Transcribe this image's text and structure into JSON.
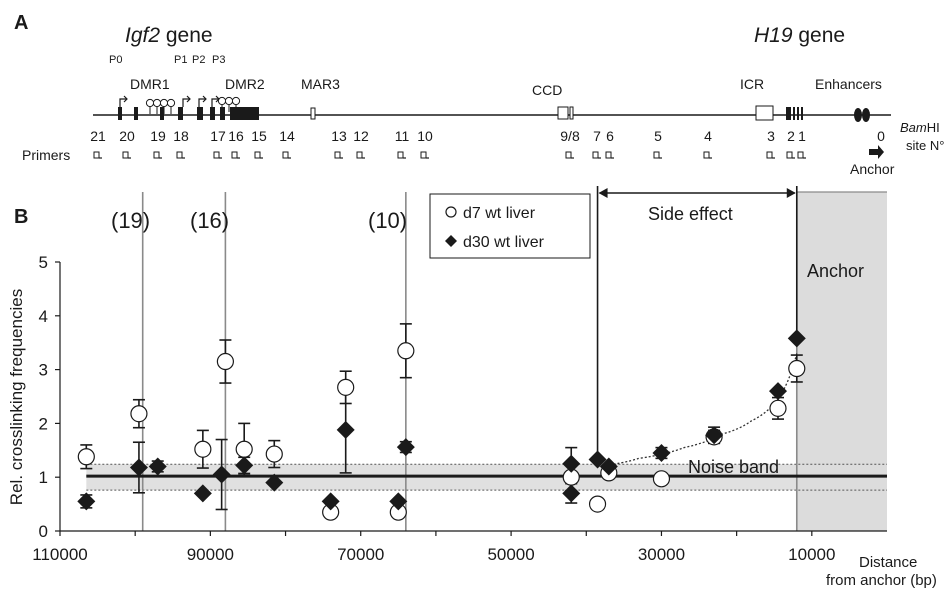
{
  "panel_a": {
    "label": "A",
    "igf2_gene_name": "Igf2",
    "igf2_gene_suffix": " gene",
    "h19_gene_name": "H19",
    "h19_gene_suffix": " gene",
    "promoters": [
      "P0",
      "P1",
      "P2",
      "P3"
    ],
    "regions": [
      "DMR1",
      "DMR2",
      "MAR3",
      "CCD",
      "ICR",
      "Enhancers"
    ],
    "primers_label": "Primers",
    "primer_numbers": [
      "21",
      "20",
      "19",
      "18",
      "17",
      "16",
      "15",
      "14",
      "13",
      "12",
      "11",
      "10",
      "9/8",
      "7",
      "6",
      "5",
      "4",
      "3",
      "2",
      "1",
      "0"
    ],
    "bamhi_label_italic": "Bam",
    "bamhi_label_rest": "HI",
    "site_label": "site N°",
    "anchor_label": "Anchor"
  },
  "panel_b": {
    "label": "B",
    "vline_labels": [
      "(19)",
      "(16)",
      "(10)"
    ],
    "side_effect_label": "Side effect",
    "anchor_region_label": "Anchor",
    "noise_band_label": "Noise band",
    "distance_label_line1": "Distance",
    "distance_label_line2": "from anchor (bp)"
  },
  "chart_data": {
    "type": "scatter",
    "title": "",
    "xlabel": "Distance from anchor (bp)",
    "ylabel": "Rel. crosslinking frequencies",
    "xlim": [
      110000,
      0
    ],
    "ylim": [
      0,
      5
    ],
    "x_reversed": true,
    "xticks": [
      110000,
      90000,
      70000,
      50000,
      30000,
      10000
    ],
    "xtick_labels": [
      "110000",
      "90000",
      "70000",
      "50000",
      "30000",
      "10000"
    ],
    "yticks": [
      0,
      1,
      2,
      3,
      4,
      5
    ],
    "ytick_labels": [
      "0",
      "1",
      "2",
      "3",
      "4",
      "5"
    ],
    "legend_position": "top-center",
    "vlines": [
      {
        "x": 99000,
        "label": "(19)"
      },
      {
        "x": 88000,
        "label": "(16)"
      },
      {
        "x": 64000,
        "label": "(10)"
      }
    ],
    "noise_band": {
      "mean": 1.02,
      "low": 0.76,
      "high": 1.24
    },
    "anchor_region": [
      12000,
      0
    ],
    "side_effect_region": [
      38500,
      12000
    ],
    "series": [
      {
        "name": "d7 wt liver",
        "marker": "open-circle",
        "points": [
          {
            "x": 106500,
            "y": 1.38,
            "err": 0.22
          },
          {
            "x": 99500,
            "y": 2.18,
            "err": 0.26
          },
          {
            "x": 91000,
            "y": 1.52,
            "err": 0.35
          },
          {
            "x": 88000,
            "y": 3.15,
            "err": 0.4
          },
          {
            "x": 85500,
            "y": 1.52,
            "err": 0.48
          },
          {
            "x": 81500,
            "y": 1.43,
            "err": 0.25
          },
          {
            "x": 74000,
            "y": 0.35,
            "err": 0
          },
          {
            "x": 72000,
            "y": 2.67,
            "err": 0.3
          },
          {
            "x": 65000,
            "y": 0.35,
            "err": 0
          },
          {
            "x": 64000,
            "y": 3.35,
            "err": 0.5
          },
          {
            "x": 42000,
            "y": 1.0,
            "err": 0.25
          },
          {
            "x": 38500,
            "y": 0.5,
            "err": 0
          },
          {
            "x": 37000,
            "y": 1.08,
            "err": 0
          },
          {
            "x": 30000,
            "y": 0.97,
            "err": 0
          },
          {
            "x": 23000,
            "y": 1.75,
            "err": 0.12
          },
          {
            "x": 14500,
            "y": 2.28,
            "err": 0.2
          },
          {
            "x": 12000,
            "y": 3.02,
            "err": 0.25
          }
        ]
      },
      {
        "name": "d30 wt liver",
        "marker": "filled-diamond",
        "points": [
          {
            "x": 106500,
            "y": 0.55,
            "err": 0.12
          },
          {
            "x": 99500,
            "y": 1.18,
            "err": 0.47
          },
          {
            "x": 97000,
            "y": 1.2,
            "err": 0.1
          },
          {
            "x": 91000,
            "y": 0.7,
            "err": 0
          },
          {
            "x": 88500,
            "y": 1.05,
            "err": 0.65
          },
          {
            "x": 85500,
            "y": 1.22,
            "err": 0.15
          },
          {
            "x": 81500,
            "y": 0.9,
            "err": 0
          },
          {
            "x": 74000,
            "y": 0.55,
            "err": 0
          },
          {
            "x": 72000,
            "y": 1.88,
            "err": 0.8
          },
          {
            "x": 65000,
            "y": 0.55,
            "err": 0
          },
          {
            "x": 64000,
            "y": 1.56,
            "err": 0.1
          },
          {
            "x": 42000,
            "y": 1.25,
            "err": 0.3
          },
          {
            "x": 42000,
            "y": 0.7,
            "err": 0.18
          },
          {
            "x": 38500,
            "y": 1.33,
            "err": 0
          },
          {
            "x": 37000,
            "y": 1.2,
            "err": 0
          },
          {
            "x": 30000,
            "y": 1.45,
            "err": 0.1
          },
          {
            "x": 23000,
            "y": 1.78,
            "err": 0.15
          },
          {
            "x": 14500,
            "y": 2.6,
            "err": 0
          },
          {
            "x": 12000,
            "y": 3.58,
            "err": 0
          }
        ]
      }
    ],
    "fit_curve": [
      {
        "x": 38500,
        "y": 1.2
      },
      {
        "x": 33000,
        "y": 1.35
      },
      {
        "x": 27000,
        "y": 1.55
      },
      {
        "x": 22000,
        "y": 1.8
      },
      {
        "x": 18000,
        "y": 2.05
      },
      {
        "x": 14500,
        "y": 2.45
      },
      {
        "x": 12000,
        "y": 3.3
      }
    ]
  }
}
